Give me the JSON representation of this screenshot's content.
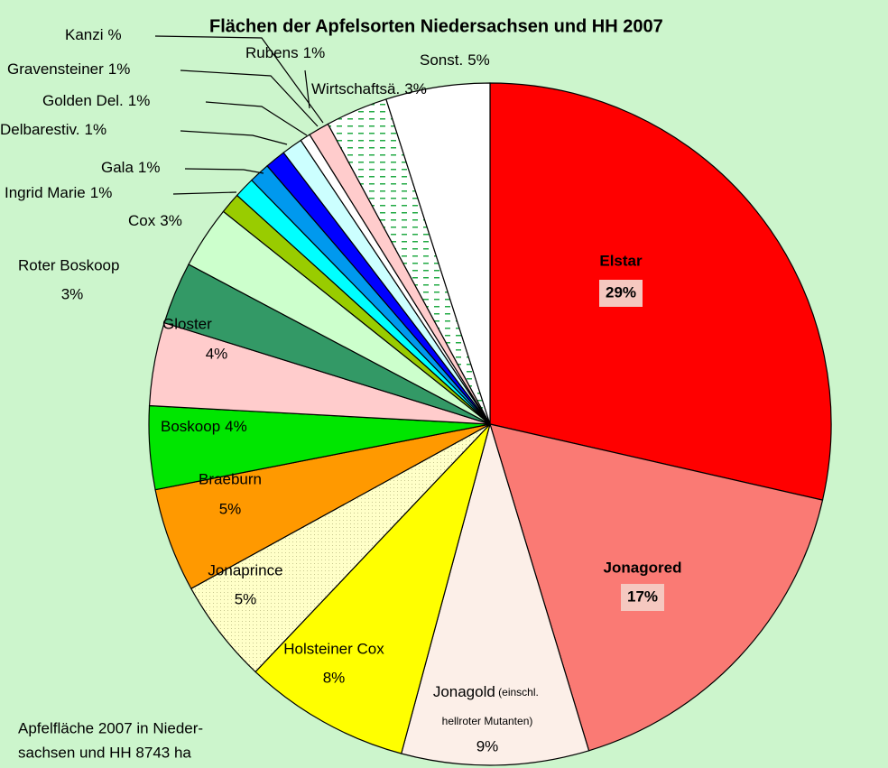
{
  "chart_data": {
    "type": "pie",
    "title": "Flächen der Apfelsorten Niedersachsen und HH 2007",
    "categories": [
      "Elstar",
      "Jonagored",
      "Jonagold (einschl. hellroter Mutanten)",
      "Holsteiner Cox",
      "Jonaprince",
      "Braeburn",
      "Boskoop",
      "Gloster",
      "Roter Boskoop",
      "Cox",
      "Ingrid Marie",
      "Gala",
      "Delbarestiv.",
      "Golden Del.",
      "Gravensteiner",
      "Kanzi",
      "Rubens",
      "Wirtschaftsä.",
      "Sonst."
    ],
    "values": [
      29,
      17,
      9,
      8,
      5,
      5,
      4,
      4,
      3,
      3,
      1,
      1,
      1,
      1,
      1,
      0.5,
      1,
      3,
      5
    ],
    "value_labels": [
      "29%",
      "17%",
      "9%",
      "8%",
      "5%",
      "5%",
      "4%",
      "4%",
      "3%",
      "3%",
      "1%",
      "1%",
      "1%",
      "1%",
      "1%",
      "%",
      "1%",
      "3%",
      "5%"
    ],
    "colors": [
      "#ff0000",
      "#fa7a74",
      "#fcefe8",
      "#ffff00",
      "#ffffc8",
      "#ff9900",
      "#00e600",
      "#ffcccc",
      "#339966",
      "#ccffcc",
      "#99cc00",
      "#00ffff",
      "#0099ee",
      "#0000ff",
      "#ccffff",
      "#ffffff",
      "#ffcccc",
      "#ffffff",
      "#ffffff"
    ],
    "annotations": [
      "Apfelfläche 2007 in Nieder-",
      "sachsen und HH 8743 ha"
    ]
  }
}
